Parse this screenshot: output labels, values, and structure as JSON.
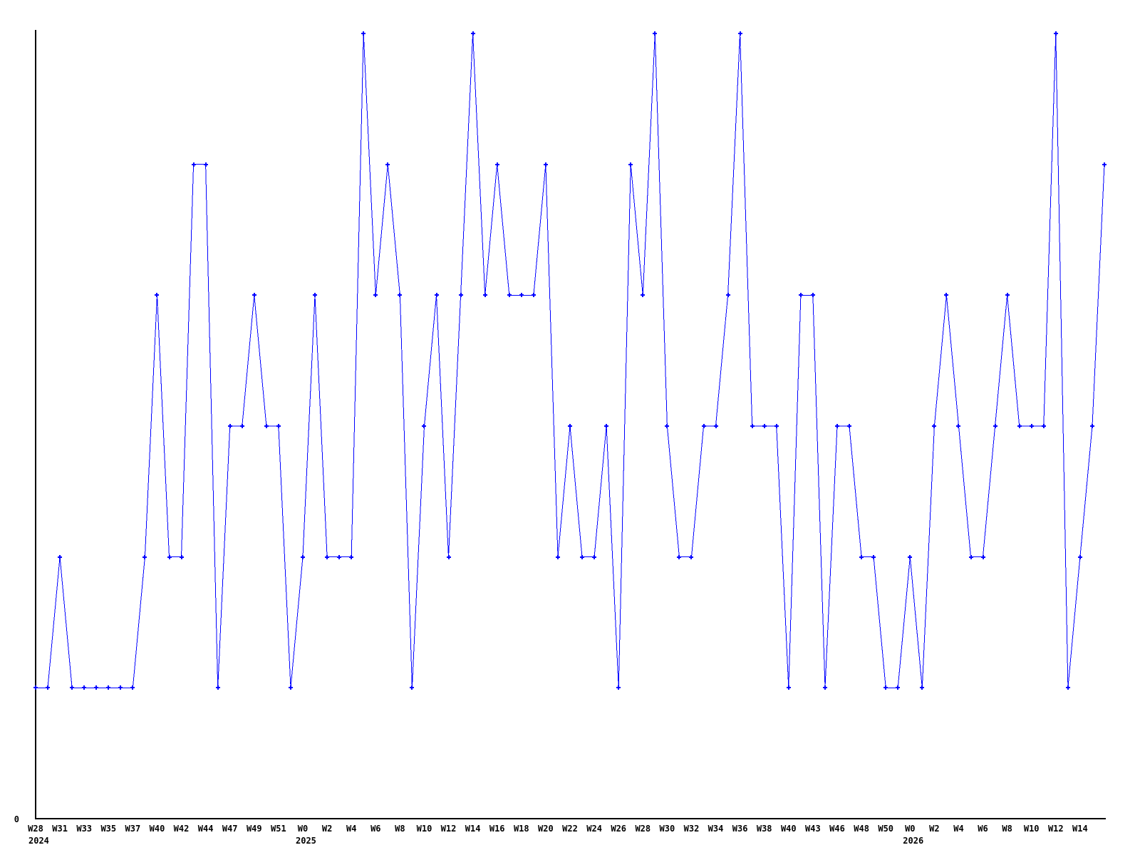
{
  "page": {
    "background": "#ffffff"
  },
  "chart_data": {
    "type": "line",
    "title": "",
    "xlabel": "",
    "ylabel": "",
    "grid": false,
    "legend": "none",
    "line_color": "#0000ff",
    "axis_color": "#000000",
    "marker": "plus",
    "ylim": [
      0,
      6
    ],
    "y_axis_tick_labels": [
      "0"
    ],
    "x_tick_every_n_points": 2,
    "x_tick_labels": [
      "W28",
      "W31",
      "W33",
      "W35",
      "W37",
      "W40",
      "W42",
      "W44",
      "W47",
      "W49",
      "W51",
      "W0",
      "W2",
      "W4",
      "W6",
      "W8",
      "W10",
      "W12",
      "W14",
      "W16",
      "W18",
      "W20",
      "W22",
      "W24",
      "W26",
      "W28",
      "W30",
      "W32",
      "W34",
      "W36",
      "W38",
      "W40",
      "W43",
      "W46",
      "W48",
      "W50",
      "W0",
      "W2",
      "W4",
      "W6",
      "W8",
      "W10",
      "W12",
      "W14"
    ],
    "year_labels": [
      {
        "tick_index": 0,
        "text": "2024"
      },
      {
        "tick_index": 11,
        "text": "2025"
      },
      {
        "tick_index": 36,
        "text": "2026"
      }
    ],
    "values": [
      1,
      1,
      2,
      1,
      1,
      1,
      1,
      1,
      1,
      2,
      4,
      2,
      2,
      5,
      5,
      1,
      3,
      3,
      4,
      3,
      3,
      1,
      2,
      4,
      2,
      2,
      2,
      6,
      4,
      5,
      4,
      1,
      3,
      4,
      2,
      4,
      6,
      4,
      5,
      4,
      4,
      4,
      5,
      2,
      3,
      2,
      2,
      3,
      1,
      5,
      4,
      6,
      3,
      2,
      2,
      3,
      3,
      4,
      6,
      3,
      3,
      3,
      1,
      4,
      4,
      1,
      3,
      3,
      2,
      2,
      1,
      1,
      2,
      1,
      3,
      4,
      3,
      2,
      2,
      3,
      4,
      3,
      3,
      3,
      6,
      1,
      2,
      3,
      5
    ]
  }
}
